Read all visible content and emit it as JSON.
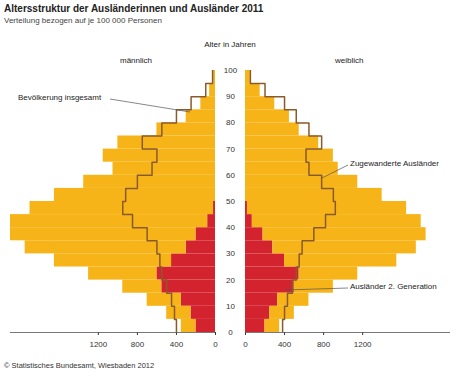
{
  "chart_data": {
    "type": "pyramid",
    "title": "Altersstruktur der Ausländerinnen und Ausländer 2011",
    "subtitle": "Verteilung bezogen auf je 100 000 Personen",
    "ylabel": "Alter in Jahren",
    "groups": [
      "männlich",
      "weiblich"
    ],
    "bins": [
      0,
      5,
      10,
      15,
      20,
      25,
      30,
      35,
      40,
      45,
      50,
      55,
      60,
      65,
      70,
      75,
      80,
      85,
      90,
      95,
      100
    ],
    "series": [
      {
        "name": "Ausländer 2. Generation",
        "color": "#d2232f",
        "values": [
          [
            200,
            250,
            350,
            550,
            600,
            450,
            300,
            200,
            80,
            20,
            0,
            0,
            0,
            0,
            0,
            0,
            0,
            0,
            0,
            0
          ],
          [
            200,
            250,
            330,
            500,
            550,
            400,
            280,
            180,
            70,
            20,
            0,
            0,
            0,
            0,
            0,
            0,
            0,
            0,
            0,
            0
          ]
        ]
      },
      {
        "name": "Zugewanderte Ausländer",
        "color": "#f6b419",
        "values": [
          [
            150,
            250,
            350,
            400,
            700,
            1200,
            1650,
            1900,
            2020,
            1880,
            1650,
            1350,
            1050,
            1150,
            1000,
            600,
            300,
            150,
            60,
            20
          ],
          [
            150,
            250,
            320,
            400,
            600,
            1150,
            1470,
            1670,
            1730,
            1630,
            1400,
            1150,
            950,
            900,
            750,
            550,
            450,
            300,
            150,
            50
          ]
        ]
      },
      {
        "name": "Bevölkerung insgesamt",
        "color": "#8b5a2b",
        "type": "line",
        "values": [
          [
            400,
            420,
            450,
            500,
            550,
            570,
            600,
            700,
            850,
            950,
            920,
            800,
            650,
            600,
            750,
            550,
            400,
            250,
            100,
            30
          ],
          [
            380,
            400,
            430,
            480,
            520,
            550,
            580,
            700,
            820,
            920,
            900,
            780,
            650,
            620,
            780,
            650,
            520,
            400,
            200,
            50
          ]
        ]
      }
    ],
    "xlim": [
      0,
      2100
    ],
    "xticks": [
      0,
      400,
      800,
      1200
    ],
    "ylim": [
      0,
      100
    ],
    "yticks": [
      0,
      10,
      20,
      30,
      40,
      50,
      60,
      70,
      80,
      90,
      100
    ],
    "caption": "© Statistisches Bundesamt, Wiesbaden 2012"
  }
}
